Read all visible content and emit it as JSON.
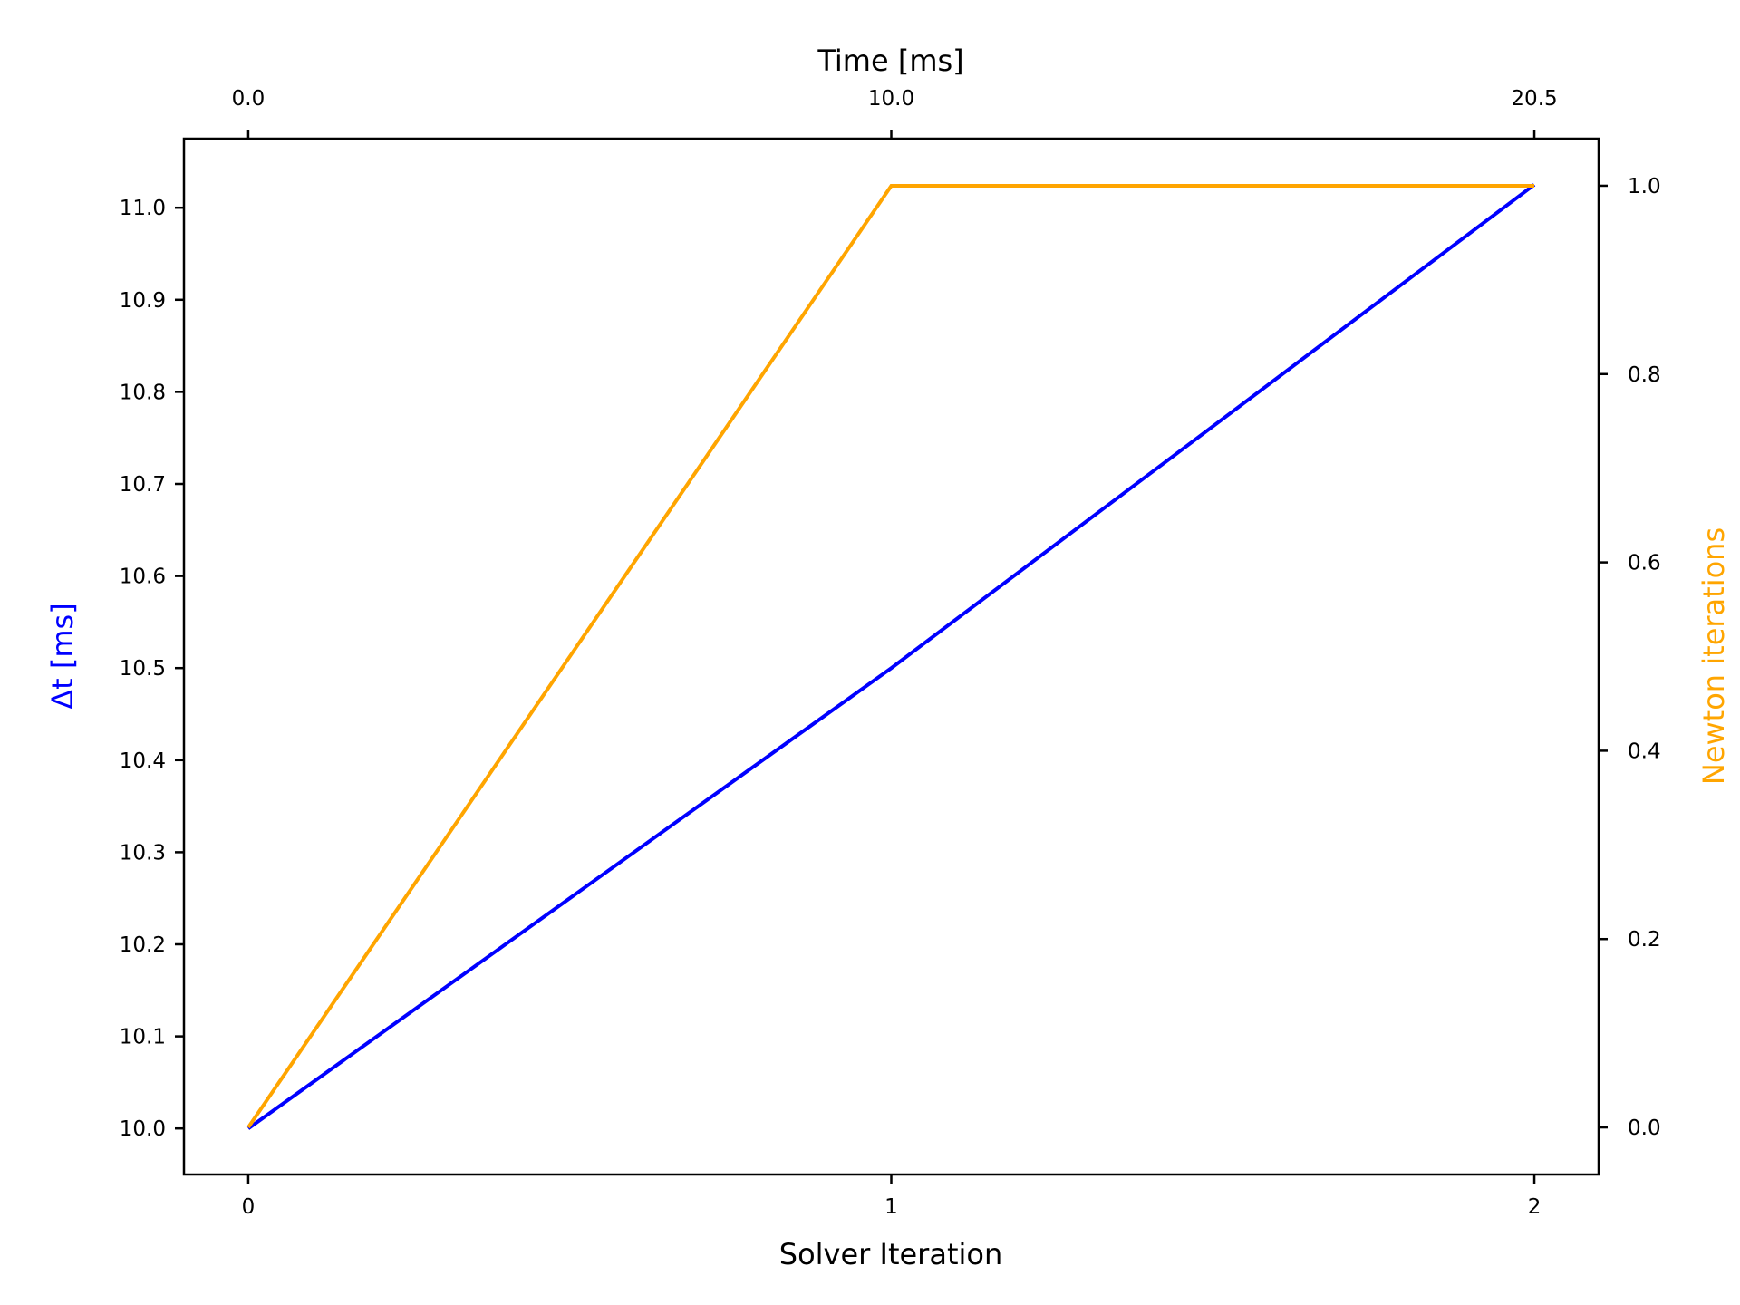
{
  "chart_data": {
    "type": "line",
    "x": [
      0,
      1,
      2
    ],
    "x_ticks": [
      "0",
      "1",
      "2"
    ],
    "xlabel": "Solver Iteration",
    "xlim": [
      -0.1,
      2.1
    ],
    "top_axis": {
      "label": "Time [ms]",
      "ticks": [
        {
          "at": 0,
          "label": "0.0"
        },
        {
          "at": 1,
          "label": "10.0"
        },
        {
          "at": 2,
          "label": "20.5"
        }
      ]
    },
    "left_axis": {
      "label": "Δt [ms]",
      "color": "#0000ff",
      "ylim": [
        9.95,
        11.075
      ],
      "ticks": [
        "10.0",
        "10.1",
        "10.2",
        "10.3",
        "10.4",
        "10.5",
        "10.6",
        "10.7",
        "10.8",
        "10.9",
        "11.0"
      ]
    },
    "right_axis": {
      "label": "Newton iterations",
      "color": "#ffa500",
      "ylim": [
        -0.05,
        1.05
      ],
      "ticks": [
        "0.0",
        "0.2",
        "0.4",
        "0.6",
        "0.8",
        "1.0"
      ]
    },
    "series": [
      {
        "axis": "left",
        "color": "#0000ff",
        "values": [
          10.0,
          10.5,
          11.025
        ]
      },
      {
        "axis": "right",
        "color": "#ffa500",
        "values": [
          0,
          1,
          1
        ]
      }
    ],
    "grid": false
  }
}
